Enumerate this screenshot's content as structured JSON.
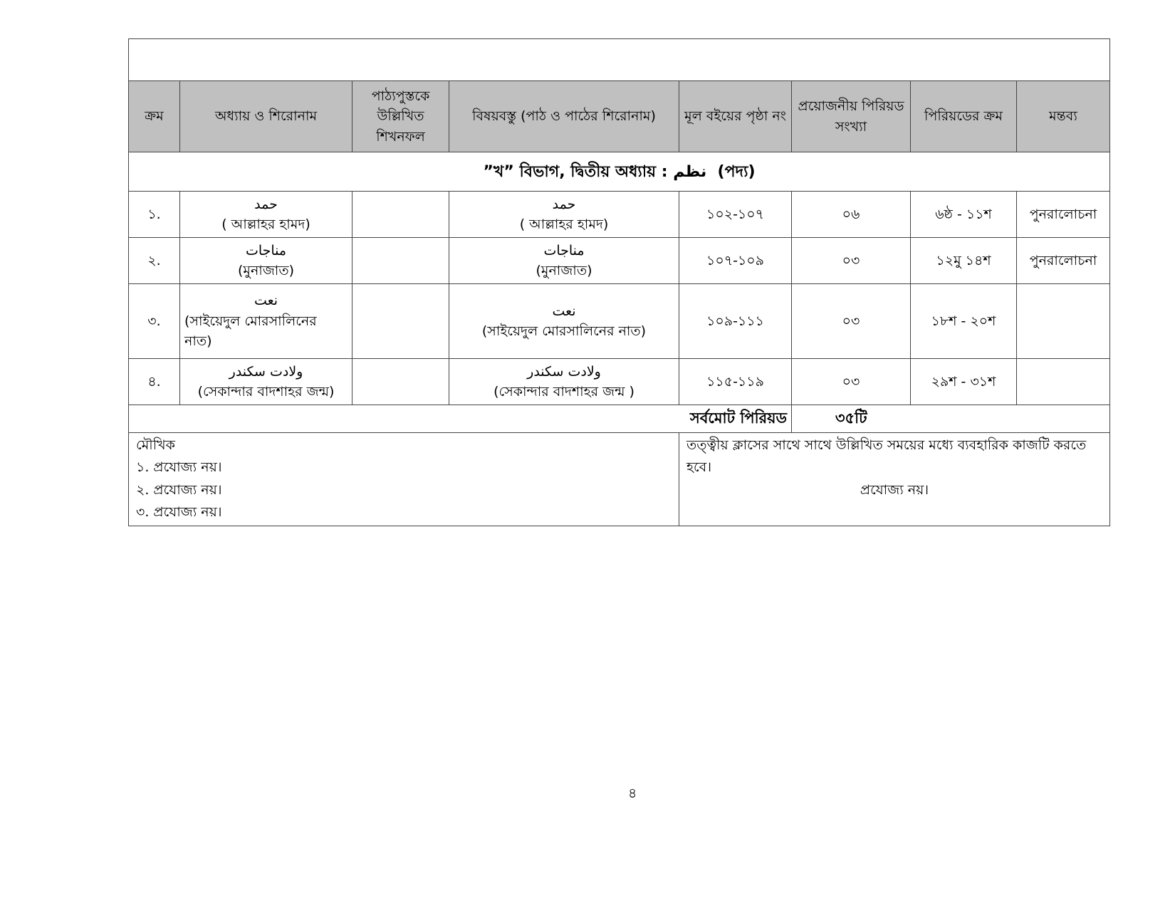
{
  "headers": [
    "ক্রম",
    "অধ্যায় ও শিরোনাম",
    "পাঠ্যপুস্তকে উল্লিখিত শিখনফল",
    "বিষয়বস্তু (পাঠ ও পাঠের শিরোনাম)",
    "মূল বইয়ের পৃষ্ঠা নং",
    "প্রয়োজনীয় পিরিয়ড সংখ্যা",
    "পিরিয়ডের ক্রম",
    "মন্তব্য"
  ],
  "section": {
    "prefix": "”খ” বিভাগ, দ্বিতীয় অধ্যায় :",
    "arabic": "نظم",
    "suffix": "(পদ্য)"
  },
  "rows": [
    {
      "sl": "১.",
      "arabic": "حمد",
      "title": "( আল্লাহর হামদ)",
      "content_arabic": "حمد",
      "content": "( আল্লাহর হামদ)",
      "pages": "১০২-১০৭",
      "periods": "০৬",
      "order": "৬ষ্ঠ - ১১শ",
      "remark": "পুনরালোচনা"
    },
    {
      "sl": "২.",
      "arabic": "مناجات",
      "title": "(মুনাজাত)",
      "content_arabic": "مناجات",
      "content": "(মুনাজাত)",
      "pages": "১০৭-১০৯",
      "periods": "০৩",
      "order": "১২মু ১৪শ",
      "remark": "পুনরালোচনা"
    },
    {
      "sl": "৩.",
      "arabic": "نعت",
      "title": "(সাইয়েদুল  মোরসালিনের নাত)",
      "content_arabic": "نعت",
      "content": "(সাইয়েদুল মোরসালিনের নাত)",
      "pages": "১০৯-১১১",
      "periods": "০৩",
      "order": "১৮শ - ২০শ",
      "remark": ""
    },
    {
      "sl": "৪.",
      "arabic": "ولادت سكندر",
      "title": "(সেকান্দার বাদশাহর জন্ম)",
      "content_arabic": "ولادت سكندر",
      "content": "(সেকান্দার বাদশাহর জন্ম )",
      "pages": "১১৫-১১৯",
      "periods": "০৩",
      "order": "২৯শ - ৩১শ",
      "remark": ""
    }
  ],
  "total": {
    "label": "সর্বমোট পিরিয়ড",
    "value": "৩৫টি"
  },
  "footer": {
    "left": [
      "মৌখিক",
      "১. প্রযোজ্য নয়।",
      "২. প্রযোজ্য নয়।",
      "৩. প্রযোজ্য নয়।"
    ],
    "right_text": "তত্ত্বীয় ক্লাসের সাথে সাথে উল্লিখিত সময়ের মধ্যে ব্যবহারিক কাজটি করতে হবে।",
    "right_note": "প্রযোজ্য নয়।"
  },
  "page_number": "৪"
}
